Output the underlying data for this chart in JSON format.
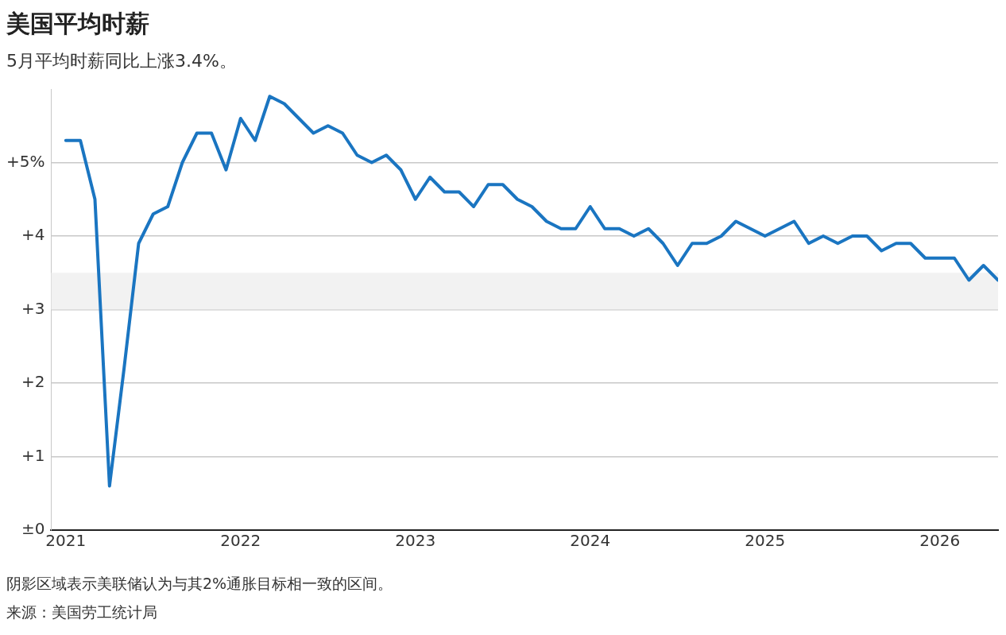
{
  "chart_data": {
    "type": "line",
    "title": "美国平均时薪",
    "subtitle": "5月平均时薪同比上涨3.4%。",
    "x": [
      "2021-01",
      "2021-02",
      "2021-03",
      "2021-04",
      "2021-05",
      "2021-06",
      "2021-07",
      "2021-08",
      "2021-09",
      "2021-10",
      "2021-11",
      "2021-12",
      "2022-01",
      "2022-02",
      "2022-03",
      "2022-04",
      "2022-05",
      "2022-06",
      "2022-07",
      "2022-08",
      "2022-09",
      "2022-10",
      "2022-11",
      "2022-12",
      "2023-01",
      "2023-02",
      "2023-03",
      "2023-04",
      "2023-05",
      "2023-06",
      "2023-07",
      "2023-08",
      "2023-09",
      "2023-10",
      "2023-11",
      "2023-12",
      "2024-01",
      "2024-02",
      "2024-03",
      "2024-04",
      "2024-05",
      "2024-06",
      "2024-07",
      "2024-08",
      "2024-09",
      "2024-10",
      "2024-11",
      "2024-12",
      "2025-01",
      "2025-02",
      "2025-03",
      "2025-04",
      "2025-05",
      "2025-06",
      "2025-07",
      "2025-08",
      "2025-09",
      "2025-10",
      "2025-11",
      "2025-12",
      "2026-01",
      "2026-02",
      "2026-03",
      "2026-04",
      "2026-05"
    ],
    "series": [
      {
        "color": "#1a75c1",
        "values": [
          5.3,
          5.3,
          4.5,
          0.6,
          2.2,
          3.9,
          4.3,
          4.4,
          5.0,
          5.4,
          5.4,
          4.9,
          5.6,
          5.3,
          5.9,
          5.8,
          5.6,
          5.4,
          5.5,
          5.4,
          5.1,
          5.0,
          5.1,
          4.9,
          4.5,
          4.8,
          4.6,
          4.6,
          4.4,
          4.7,
          4.7,
          4.5,
          4.4,
          4.2,
          4.1,
          4.1,
          4.4,
          4.1,
          4.1,
          4.0,
          4.1,
          3.9,
          3.6,
          3.9,
          3.9,
          4.0,
          4.2,
          4.1,
          4.0,
          4.1,
          4.2,
          3.9,
          4.0,
          3.9,
          4.0,
          4.0,
          3.8,
          3.9,
          3.9,
          3.7,
          3.7,
          3.7,
          3.4,
          3.6,
          3.4
        ]
      }
    ],
    "xlim": [
      "2020-12",
      "2026-05"
    ],
    "xticks": [
      "2021",
      "2022",
      "2023",
      "2024",
      "2025",
      "2026"
    ],
    "ylim": [
      0,
      6
    ],
    "yticks": [
      {
        "value": 0,
        "label": "±0"
      },
      {
        "value": 1,
        "label": "+1"
      },
      {
        "value": 2,
        "label": "+2"
      },
      {
        "value": 3,
        "label": "+3"
      },
      {
        "value": 4,
        "label": "+4"
      },
      {
        "value": 5,
        "label": "+5%"
      }
    ],
    "bands": [
      {
        "axis": "y",
        "from": 3,
        "to": 3.5,
        "color": "#f2f2f2"
      }
    ],
    "grid": "y",
    "legend": false,
    "marker": "none",
    "line_style": "solid",
    "annotations": [
      "阴影区域表示美联储认为与其2%通胀目标相一致的区间。",
      "来源：美国劳工统计局"
    ]
  }
}
